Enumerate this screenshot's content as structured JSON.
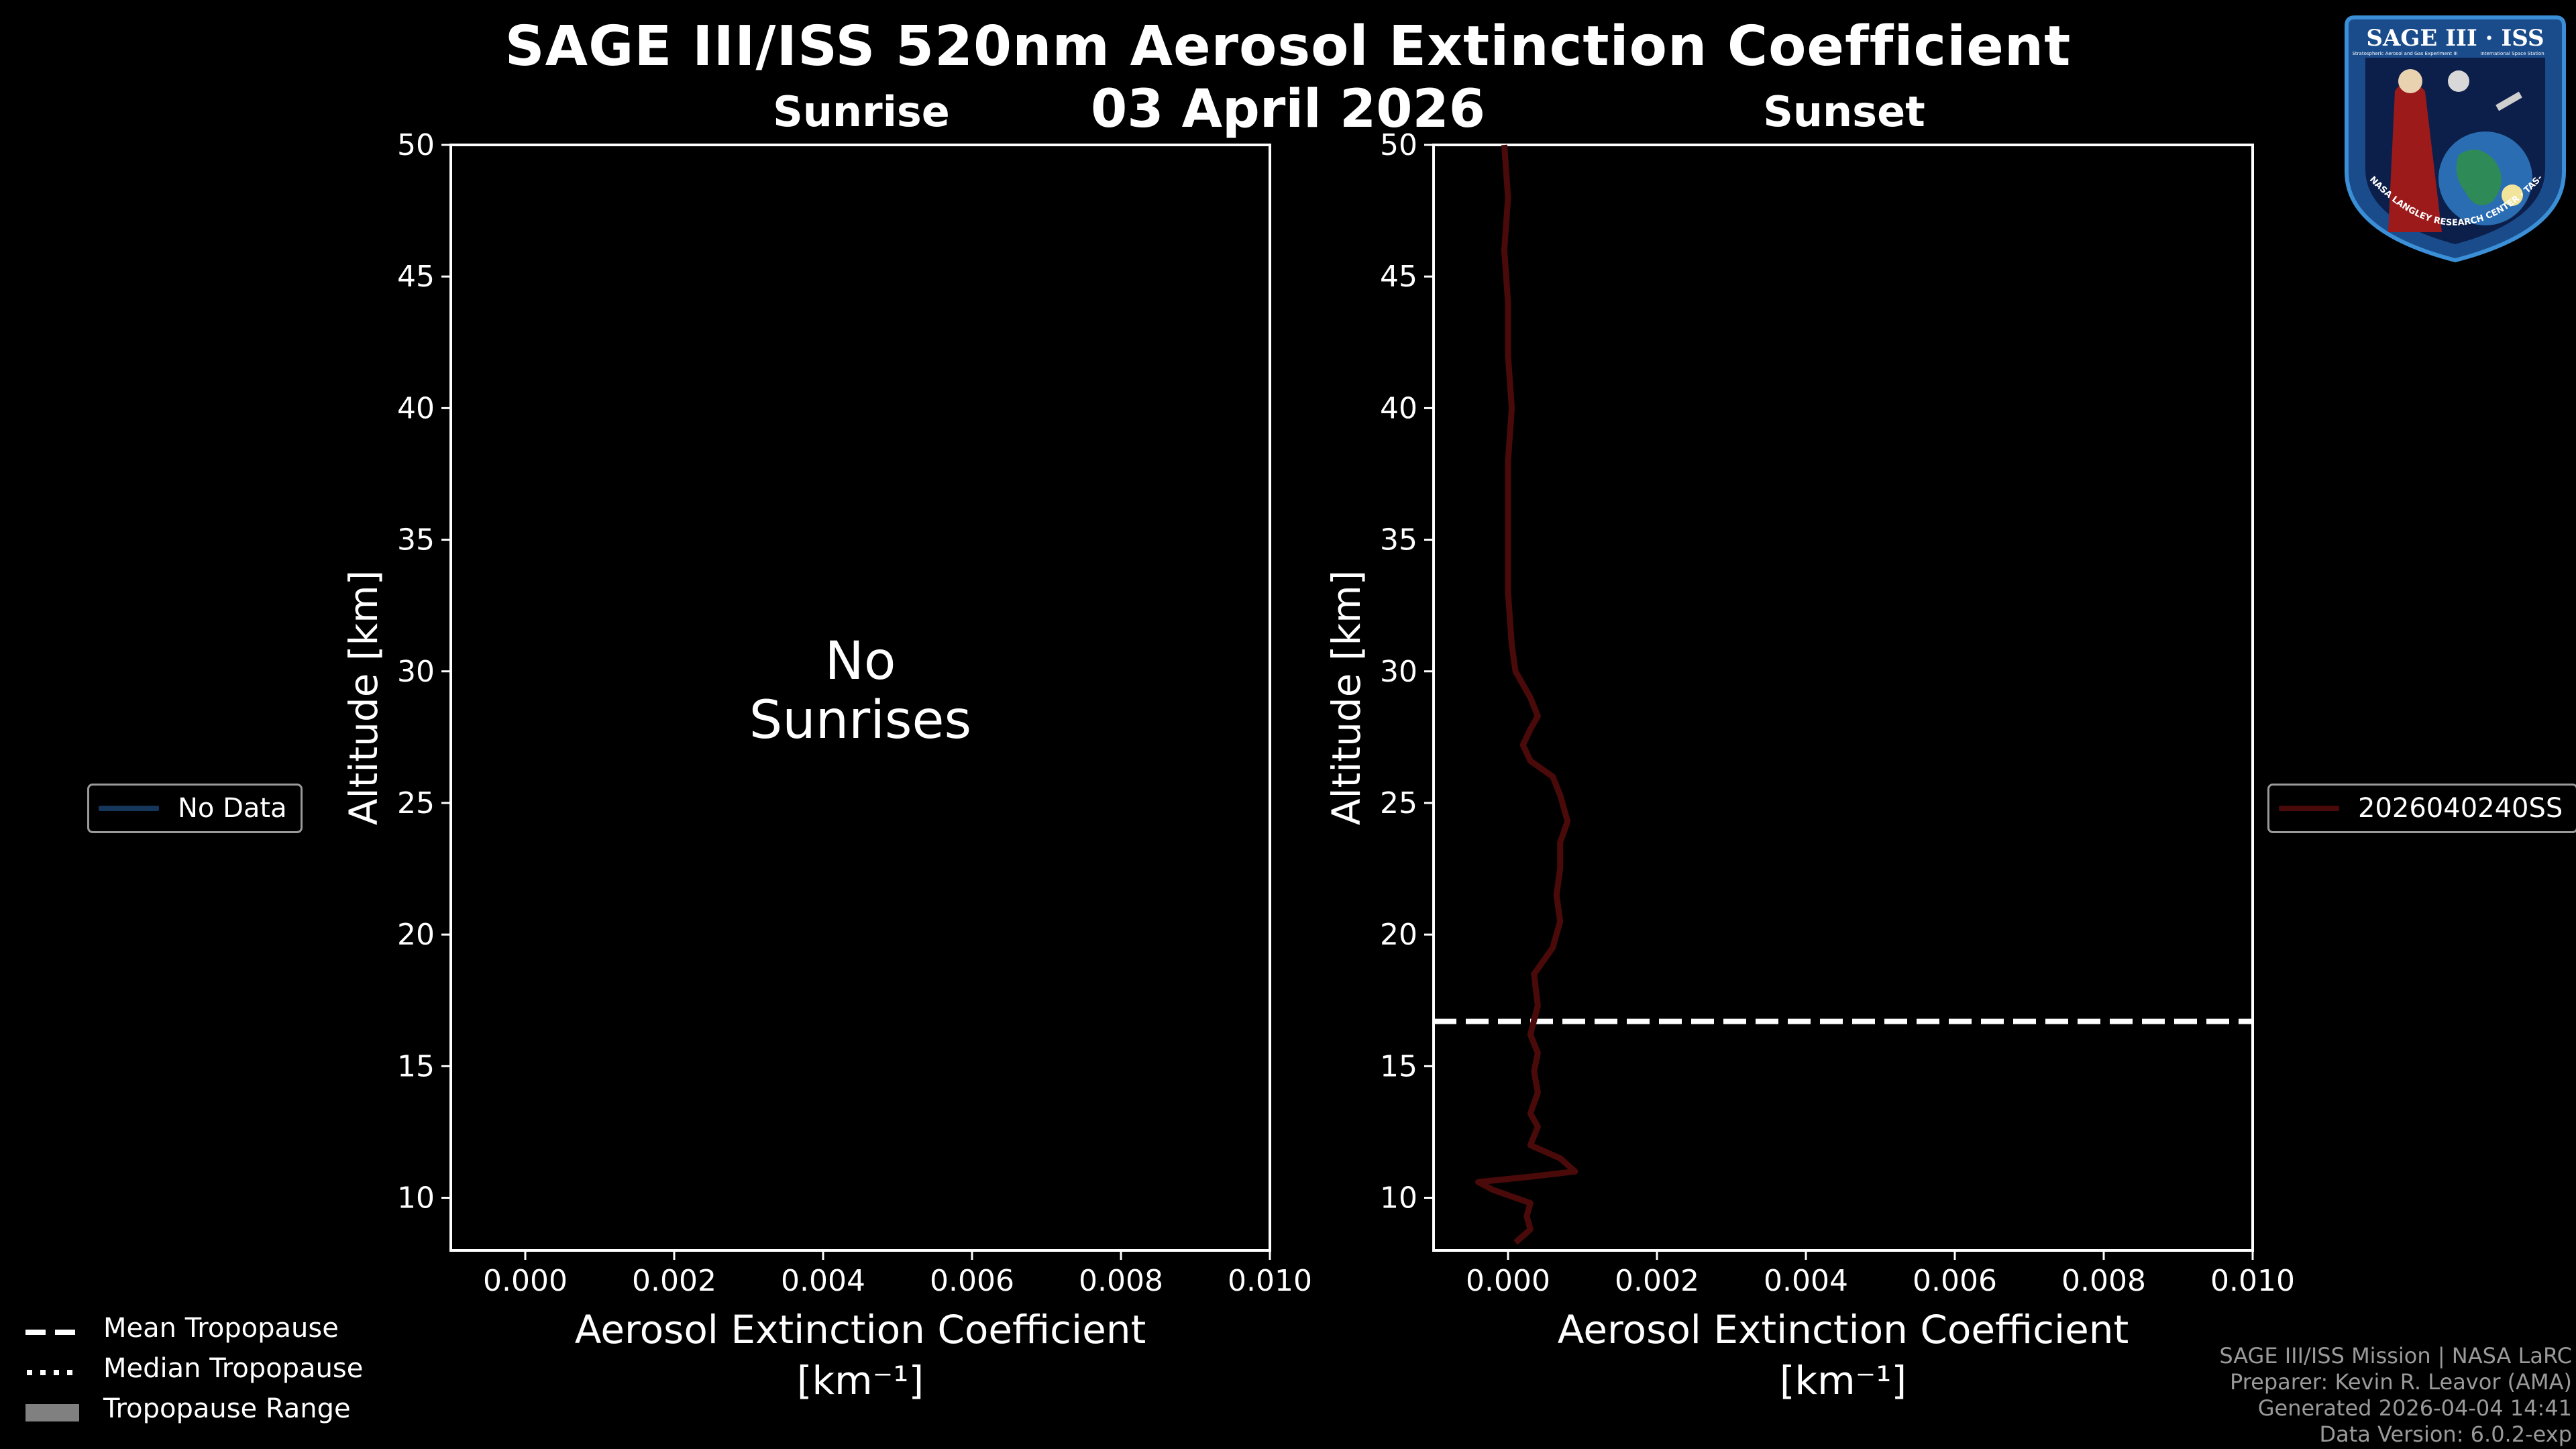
{
  "title": "SAGE III/ISS 520nm Aerosol Extinction Coefficient",
  "date": "03 April 2026",
  "colors": {
    "background": "#000000",
    "axis": "#ffffff",
    "sunrise_series": "#16365c",
    "sunset_series": "#4a0a0a",
    "tropopause": "#ffffff",
    "tropopause_range": "#808080",
    "footer_text": "#9a9a9a"
  },
  "panels": {
    "sunrise": {
      "title": "Sunrise",
      "no_data_text_line1": "No",
      "no_data_text_line2": "Sunrises",
      "legend_label": "No Data",
      "ylabel": "Altitude [km]",
      "xlabel_line1": "Aerosol Extinction Coefficient",
      "xlabel_line2": "[km⁻¹]"
    },
    "sunset": {
      "title": "Sunset",
      "legend_label": "2026040240SS",
      "ylabel": "Altitude [km]",
      "xlabel_line1": "Aerosol Extinction Coefficient",
      "xlabel_line2": "[km⁻¹]"
    }
  },
  "chart_data": [
    {
      "type": "line",
      "title": "Sunrise",
      "xlabel": "Aerosol Extinction Coefficient [km⁻¹]",
      "ylabel": "Altitude [km]",
      "xlim": [
        -0.001,
        0.01
      ],
      "ylim": [
        8,
        50
      ],
      "xticks": [
        "0.000",
        "0.002",
        "0.004",
        "0.006",
        "0.008",
        "0.010"
      ],
      "yticks": [
        "10",
        "15",
        "20",
        "25",
        "30",
        "35",
        "40",
        "45",
        "50"
      ],
      "series": [],
      "annotation": "No Sunrises",
      "legend": [
        "No Data"
      ],
      "legend_placement": "left"
    },
    {
      "type": "line",
      "title": "Sunset",
      "xlabel": "Aerosol Extinction Coefficient [km⁻¹]",
      "ylabel": "Altitude [km]",
      "xlim": [
        -0.001,
        0.01
      ],
      "ylim": [
        8,
        50
      ],
      "xticks": [
        "0.000",
        "0.002",
        "0.004",
        "0.006",
        "0.008",
        "0.010"
      ],
      "yticks": [
        "10",
        "15",
        "20",
        "25",
        "30",
        "35",
        "40",
        "45",
        "50"
      ],
      "series": [
        {
          "name": "2026040240SS",
          "points": [
            [
              0.0001,
              8.3
            ],
            [
              0.0003,
              8.8
            ],
            [
              0.00025,
              9.3
            ],
            [
              0.0003,
              9.8
            ],
            [
              -0.0002,
              10.3
            ],
            [
              -0.0004,
              10.6
            ],
            [
              0.0003,
              10.8
            ],
            [
              0.0009,
              11.0
            ],
            [
              0.0007,
              11.5
            ],
            [
              0.0003,
              12.0
            ],
            [
              0.0004,
              12.7
            ],
            [
              0.0003,
              13.2
            ],
            [
              0.0004,
              14.0
            ],
            [
              0.00035,
              14.8
            ],
            [
              0.0004,
              15.5
            ],
            [
              0.0003,
              16.2
            ],
            [
              0.0004,
              17.3
            ],
            [
              0.00035,
              18.5
            ],
            [
              0.0006,
              19.5
            ],
            [
              0.0007,
              20.5
            ],
            [
              0.00065,
              21.5
            ],
            [
              0.0007,
              22.5
            ],
            [
              0.0007,
              23.5
            ],
            [
              0.0008,
              24.3
            ],
            [
              0.0007,
              25.3
            ],
            [
              0.0006,
              26.0
            ],
            [
              0.0003,
              26.6
            ],
            [
              0.0002,
              27.2
            ],
            [
              0.0003,
              27.8
            ],
            [
              0.0004,
              28.3
            ],
            [
              0.0003,
              29.0
            ],
            [
              0.0001,
              30.0
            ],
            [
              5e-05,
              31.0
            ],
            [
              0.0,
              33.0
            ],
            [
              0.0,
              36.0
            ],
            [
              0.0,
              38.0
            ],
            [
              5e-05,
              40.0
            ],
            [
              0.0,
              42.0
            ],
            [
              0.0,
              44.0
            ],
            [
              -5e-05,
              46.0
            ],
            [
              0.0,
              48.0
            ],
            [
              -5e-05,
              50.0
            ]
          ]
        }
      ],
      "mean_tropopause_km": 16.7,
      "legend_placement": "right"
    }
  ],
  "bottom_legend": [
    {
      "label": "Mean Tropopause",
      "style": "dashed"
    },
    {
      "label": "Median Tropopause",
      "style": "dotted"
    },
    {
      "label": "Tropopause Range",
      "style": "box"
    }
  ],
  "footer": {
    "line1": "SAGE III/ISS Mission | NASA LaRC",
    "line2": "Preparer: Kevin R. Leavor (AMA)",
    "line3": "Generated 2026-04-04 14:41",
    "line4": "Data Version: 6.0.2-exp"
  },
  "logo": {
    "title": "SAGE III · ISS",
    "tagline_left": "Stratospheric Aerosol and Gas Experiment III",
    "tagline_right": "International Space Station",
    "rim_text": "BALL · NASA LANGLEY RESEARCH CENTER · TAS-I · ESA"
  }
}
